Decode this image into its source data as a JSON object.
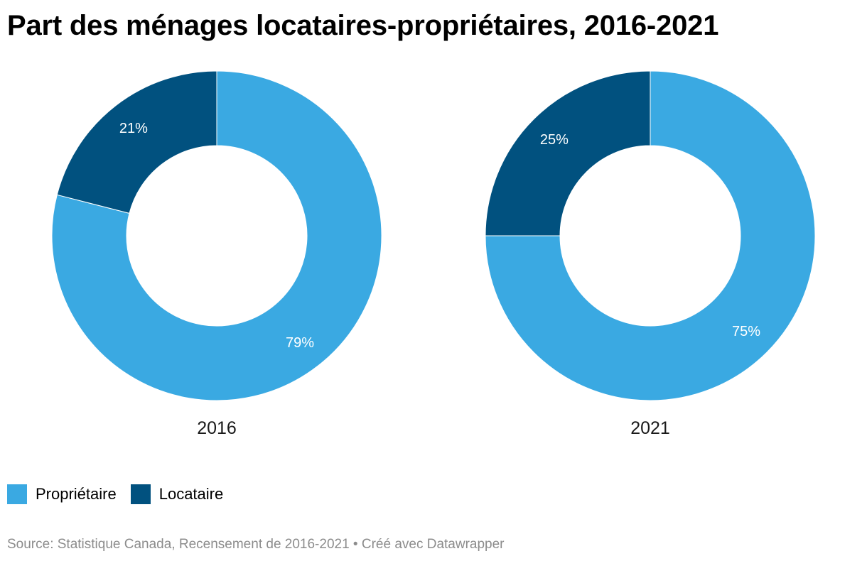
{
  "title": "Part des ménages locataires-propriétaires, 2016-2021",
  "source": "Source: Statistique Canada, Recensement de 2016-2021 • Créé avec Datawrapper",
  "colors": {
    "proprietaire": "#3aa9e2",
    "locataire": "#01517f"
  },
  "legend": [
    {
      "label": "Propriétaire",
      "color": "#3aa9e2"
    },
    {
      "label": "Locataire",
      "color": "#01517f"
    }
  ],
  "chart_data": [
    {
      "type": "pie",
      "subtitle": "2016",
      "slices": [
        {
          "name": "Propriétaire",
          "value": 79,
          "label": "79%",
          "color": "#3aa9e2"
        },
        {
          "name": "Locataire",
          "value": 21,
          "label": "21%",
          "color": "#01517f"
        }
      ]
    },
    {
      "type": "pie",
      "subtitle": "2021",
      "slices": [
        {
          "name": "Propriétaire",
          "value": 75,
          "label": "75%",
          "color": "#3aa9e2"
        },
        {
          "name": "Locataire",
          "value": 25,
          "label": "25%",
          "color": "#01517f"
        }
      ]
    }
  ]
}
